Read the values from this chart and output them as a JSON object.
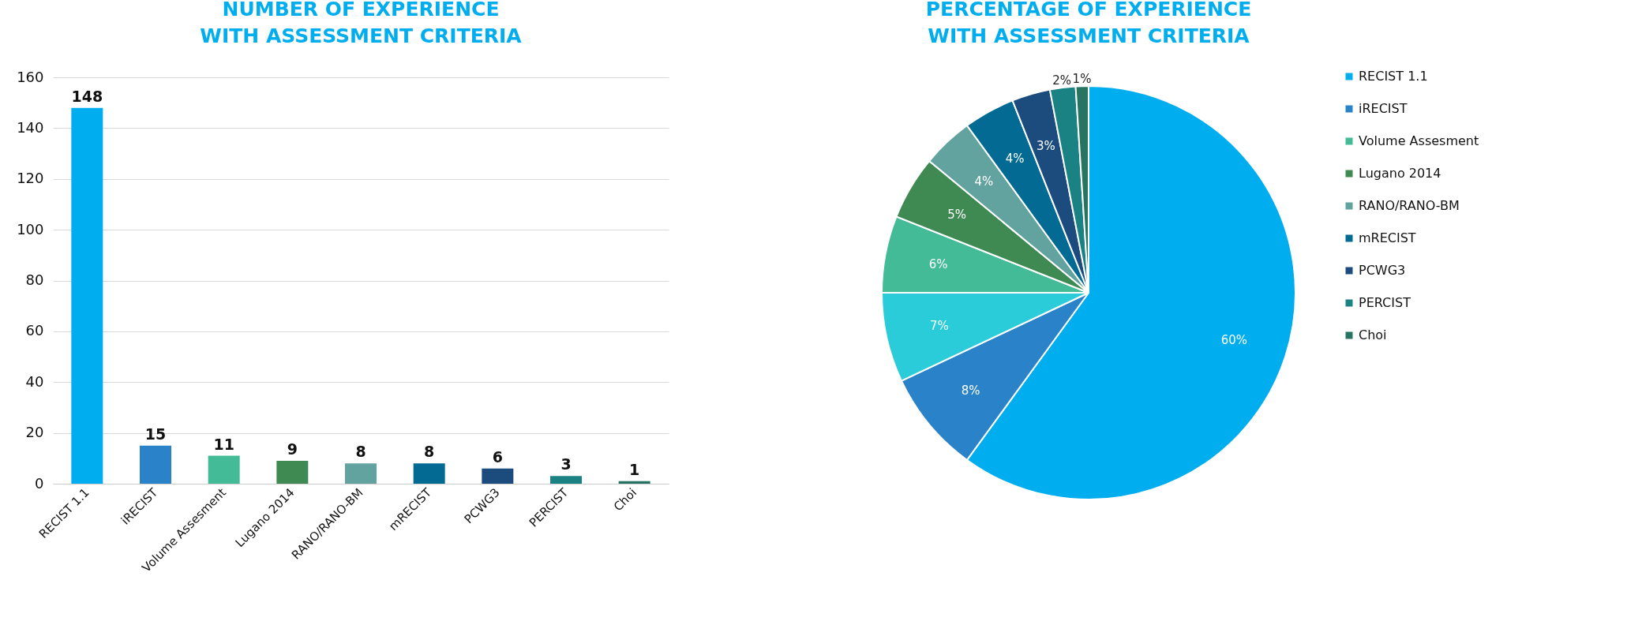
{
  "chart_data": [
    {
      "type": "bar",
      "title": "NUMBER OF EXPERIENCE\nWITH ASSESSMENT CRITERIA",
      "categories": [
        "RECIST 1.1",
        "iRECIST",
        "Volume Assesment",
        "Lugano 2014",
        "RANO/RANO-BM",
        "mRECIST",
        "PCWG3",
        "PERCIST",
        "Choi"
      ],
      "values": [
        148,
        15,
        11,
        9,
        8,
        8,
        6,
        3,
        1
      ],
      "colors": [
        "#00aeef",
        "#2a83c8",
        "#43bb96",
        "#3f8a52",
        "#62a39f",
        "#036b93",
        "#1c4b7e",
        "#1a8282",
        "#267461"
      ],
      "ylim": [
        0,
        160
      ],
      "yticks": [
        0,
        20,
        40,
        60,
        80,
        100,
        120,
        140,
        160
      ],
      "grid": "y",
      "data_labels": true
    },
    {
      "type": "pie",
      "title": "PERCENTAGE OF EXPERIENCE\nWITH ASSESSMENT CRITERIA",
      "categories": [
        "RECIST 1.1",
        "iRECIST",
        null,
        "Volume Assesment",
        "Lugano 2014",
        "RANO/RANO-BM",
        "mRECIST",
        "PCWG3",
        "PERCIST",
        "Choi"
      ],
      "values": [
        60,
        8,
        7,
        6,
        5,
        4,
        4,
        3,
        2,
        1
      ],
      "value_labels": [
        "60%",
        "8%",
        "7%",
        "6%",
        "5%",
        "4%",
        "4%",
        "3%",
        "2%",
        "1%"
      ],
      "colors": [
        "#00aeef",
        "#2a83c8",
        "#29ccd8",
        "#43bb96",
        "#3f8a52",
        "#62a39f",
        "#036b93",
        "#1c4b7e",
        "#1a8282",
        "#267461"
      ],
      "legend": "right"
    }
  ]
}
